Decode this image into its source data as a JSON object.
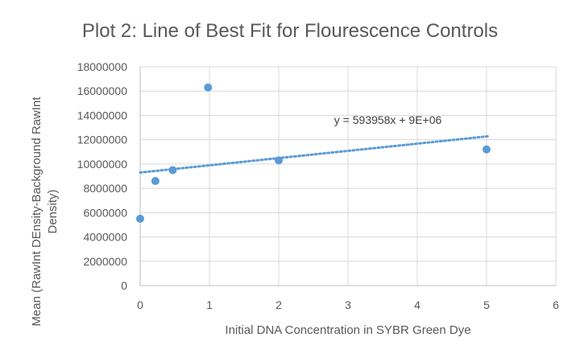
{
  "chart_data": {
    "type": "scatter",
    "title": "Plot 2: Line of Best Fit for Flourescence Controls",
    "xlabel": "Initial DNA Concentration in SYBR Green Dye",
    "ylabel_line1": "Mean (RawInt DEnsity-Background RawInt",
    "ylabel_line2": "Density)",
    "xlim": [
      0,
      6
    ],
    "ylim": [
      0,
      18000000
    ],
    "x_ticks": [
      0,
      1,
      2,
      3,
      4,
      5,
      6
    ],
    "y_ticks": [
      0,
      2000000,
      4000000,
      6000000,
      8000000,
      10000000,
      12000000,
      14000000,
      16000000,
      18000000
    ],
    "x_tick_labels": [
      "0",
      "1",
      "2",
      "3",
      "4",
      "5",
      "6"
    ],
    "y_tick_labels": [
      "0",
      "2000000",
      "4000000",
      "6000000",
      "8000000",
      "10000000",
      "12000000",
      "14000000",
      "16000000",
      "18000000"
    ],
    "grid": true,
    "series": [
      {
        "color": "#5b9bd5",
        "points": [
          {
            "x": 0,
            "y": 5500000
          },
          {
            "x": 0.22,
            "y": 8600000
          },
          {
            "x": 0.47,
            "y": 9500000
          },
          {
            "x": 0.98,
            "y": 16300000
          },
          {
            "x": 2,
            "y": 10300000
          },
          {
            "x": 5,
            "y": 11200000
          }
        ]
      }
    ],
    "trendline": {
      "type": "linear",
      "slope": 593958,
      "intercept": 9300000,
      "x_range": [
        0,
        5.05
      ],
      "equation_label": "y = 593958x + 9E+06",
      "label_at": {
        "x": 2.8,
        "y": 13300000
      }
    }
  }
}
